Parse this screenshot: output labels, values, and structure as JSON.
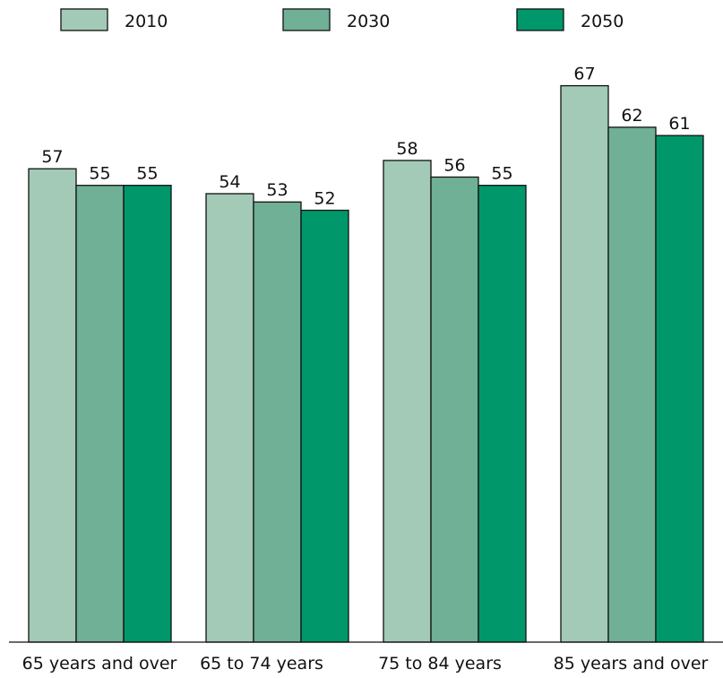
{
  "chart_data": {
    "type": "bar",
    "categories": [
      "65 years and over",
      "65 to 74 years",
      "75 to 84 years",
      "85 years and over"
    ],
    "series": [
      {
        "name": "2010",
        "color": "#a3cab7",
        "values": [
          57,
          54,
          58,
          67
        ]
      },
      {
        "name": "2030",
        "color": "#6fb096",
        "values": [
          55,
          53,
          56,
          62
        ]
      },
      {
        "name": "2050",
        "color": "#00976a",
        "values": [
          55,
          52,
          55,
          61
        ]
      }
    ],
    "title": "",
    "xlabel": "",
    "ylabel": "",
    "ylim": [
      0,
      74
    ],
    "grid": false,
    "legend_position": "top",
    "data_labels": true
  }
}
